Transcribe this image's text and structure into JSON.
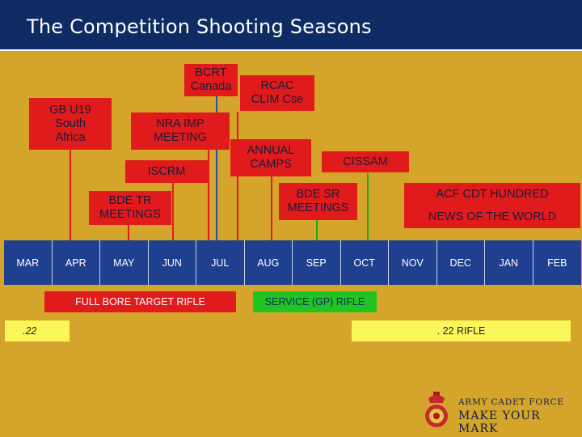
{
  "header": {
    "title": "The Competition Shooting Seasons"
  },
  "events": {
    "gb_u19": "GB U19\nSouth\nAfrica",
    "bcrt": "BCRT\nCanada",
    "rcac": "RCAC\nCLIM Cse",
    "nra_imp": "NRA IMP\nMEETING",
    "annual_camps": "ANNUAL\nCAMPS",
    "cissam": "CISSAM",
    "iscrm": "ISCRM",
    "bde_tr": "BDE TR\nMEETINGS",
    "bde_sr": "BDE SR\nMEETINGS",
    "acf_cdt": "ACF CDT HUNDRED",
    "news_world": "NEWS OF THE WORLD"
  },
  "months": [
    "MAR",
    "APR",
    "MAY",
    "JUN",
    "JUL",
    "AUG",
    "SEP",
    "OCT",
    "NOV",
    "DEC",
    "JAN",
    "FEB"
  ],
  "bars": {
    "full_bore": "FULL BORE TARGET RIFLE",
    "service": "SERVICE (GP) RIFLE",
    "point22_left": ".22",
    "point22_right": ". 22 RIFLE"
  },
  "footer": {
    "line1": "ARMY CADET FORCE",
    "line2": "MAKE YOUR MARK"
  }
}
